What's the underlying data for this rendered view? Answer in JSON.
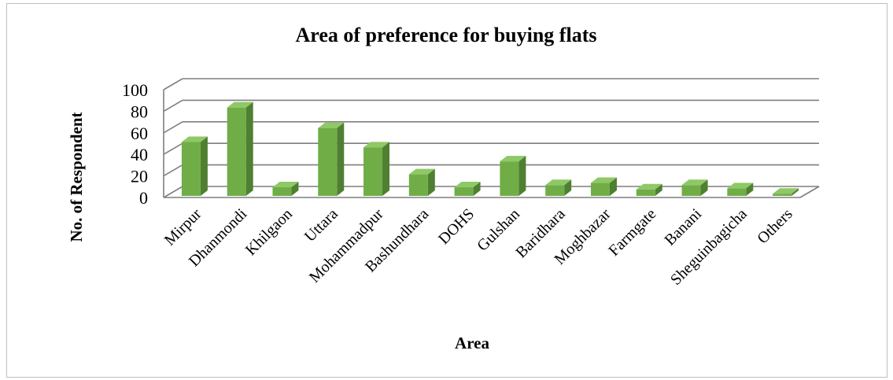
{
  "chart_data": {
    "type": "bar",
    "style": "3d-column",
    "title": "Area of preference for buying flats",
    "xlabel": "Area",
    "ylabel": "No. of Respondent",
    "categories": [
      "Mirpur",
      "Dhanmondi",
      "Khilgaon",
      "Uttara",
      "Mohammadpur",
      "Bashundhara",
      "DOHS",
      "Gulshan",
      "Baridhara",
      "Moghbazar",
      "Farmgate",
      "Banani",
      "Sheguinbagicha",
      "Others"
    ],
    "values": [
      50,
      82,
      8,
      63,
      45,
      20,
      8,
      32,
      10,
      12,
      6,
      10,
      7,
      2
    ],
    "yticks": [
      0,
      20,
      40,
      60,
      80,
      100
    ],
    "ylim": [
      0,
      100
    ],
    "grid": true,
    "legend": "none",
    "colors": {
      "bar_front": "#70ad47",
      "bar_side": "#4f7f31",
      "bar_top": "#8fc866",
      "grid": "#7f7f7f",
      "frame": "#bfbfbf"
    }
  }
}
